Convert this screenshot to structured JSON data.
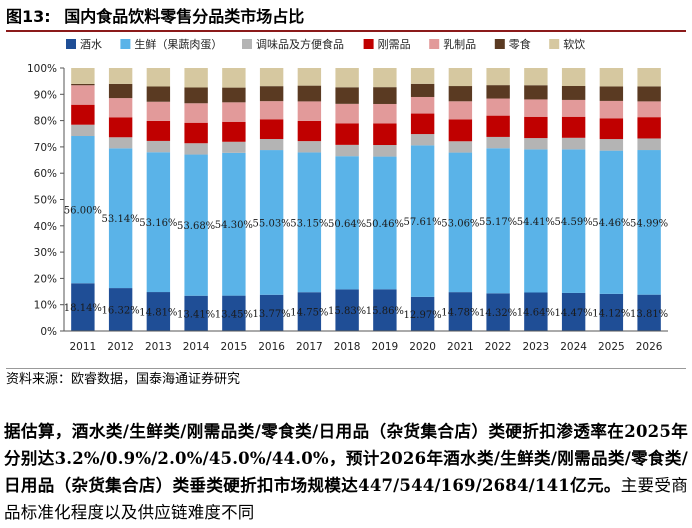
{
  "figure": {
    "number": "图13:",
    "title": "国内食品饮料零售分品类市场占比"
  },
  "source_note": "资料来源：欧睿数据，国泰海通证券研究",
  "paragraph": {
    "bold": "据估算，酒水类/生鲜类/刚需品类/零食类/日用品（杂货集合店）类硬折扣渗透率在2025年分别达3.2%/0.9%/2.0%/45.0%/44.0%，预计2026年酒水类/生鲜类/刚需品类/零食类/日用品（杂货集合店）类垂类硬折扣市场规模达447/544/169/2684/141亿元。",
    "normal": "主要受商品标准化程度以及供应链难度不同"
  },
  "chart_data": {
    "type": "bar",
    "stacked": true,
    "percent": true,
    "title": "国内食品饮料零售分品类市场占比",
    "categories": [
      "2011",
      "2012",
      "2013",
      "2014",
      "2015",
      "2016",
      "2017",
      "2018",
      "2019",
      "2020",
      "2021",
      "2022",
      "2023",
      "2024",
      "2025",
      "2026"
    ],
    "ylim": [
      0,
      100
    ],
    "yticks": [
      "0%",
      "10%",
      "20%",
      "30%",
      "40%",
      "50%",
      "60%",
      "70%",
      "80%",
      "90%",
      "100%"
    ],
    "legend_position": "top",
    "grid": false,
    "series": [
      {
        "name": "酒水",
        "color": "#1f4e96",
        "values": [
          18.14,
          16.32,
          14.81,
          13.41,
          13.45,
          13.77,
          14.75,
          15.83,
          15.86,
          12.97,
          14.78,
          14.32,
          14.64,
          14.47,
          14.12,
          13.81
        ]
      },
      {
        "name": "生鲜（果蔬肉蛋）",
        "color": "#5ab3e8",
        "values": [
          56.0,
          53.14,
          53.16,
          53.68,
          54.3,
          55.03,
          53.15,
          50.64,
          50.46,
          57.61,
          53.06,
          55.17,
          54.41,
          54.59,
          54.46,
          54.99
        ]
      },
      {
        "name": "调味品及方便食品",
        "color": "#b4b4b4",
        "values": [
          4.3,
          4.2,
          4.3,
          4.3,
          4.2,
          4.2,
          4.3,
          4.3,
          4.4,
          4.3,
          4.3,
          4.3,
          4.3,
          4.4,
          4.4,
          4.4
        ]
      },
      {
        "name": "刚需品",
        "color": "#c00000",
        "values": [
          7.6,
          7.6,
          7.6,
          7.8,
          7.6,
          7.5,
          7.7,
          8.2,
          8.2,
          7.8,
          8.3,
          8.1,
          8.1,
          8.0,
          7.9,
          8.1
        ]
      },
      {
        "name": "乳制品",
        "color": "#e29a9a",
        "values": [
          7.4,
          7.3,
          7.3,
          7.4,
          7.4,
          6.9,
          7.4,
          7.4,
          7.4,
          6.3,
          6.9,
          6.5,
          6.6,
          6.4,
          6.6,
          6.0
        ]
      },
      {
        "name": "零食",
        "color": "#5a3a22",
        "values": [
          0.5,
          5.4,
          5.8,
          6.0,
          5.6,
          5.7,
          6.0,
          6.3,
          6.4,
          5.0,
          5.8,
          5.1,
          5.4,
          5.3,
          5.5,
          5.7
        ]
      },
      {
        "name": "软饮",
        "color": "#d6c8a0",
        "values": [
          6.06,
          6.04,
          7.03,
          7.41,
          7.45,
          6.9,
          6.7,
          7.33,
          7.28,
          6.02,
          6.86,
          6.51,
          6.55,
          6.84,
          7.02,
          6.99
        ]
      }
    ],
    "labeled_series": [
      0,
      1
    ]
  }
}
